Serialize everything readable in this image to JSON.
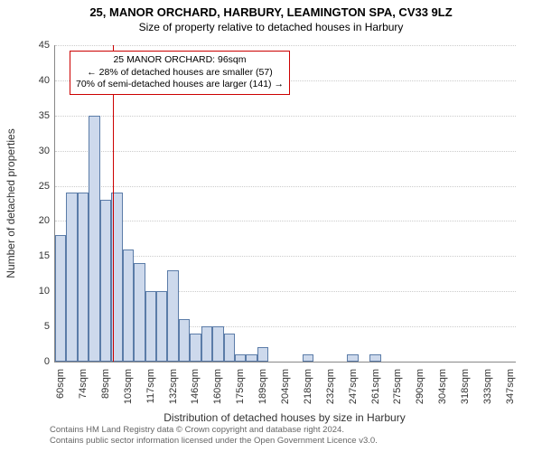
{
  "title_main": "25, MANOR ORCHARD, HARBURY, LEAMINGTON SPA, CV33 9LZ",
  "title_sub": "Size of property relative to detached houses in Harbury",
  "ylabel": "Number of detached properties",
  "xlabel": "Distribution of detached houses by size in Harbury",
  "ylim": [
    0,
    45
  ],
  "ytick_step": 5,
  "bar_fill": "#cdd9ec",
  "bar_border": "#5b7ca8",
  "grid_color": "#cccccc",
  "marker_color": "#cc0000",
  "marker_x_value": 96,
  "annotation": {
    "line1": "25 MANOR ORCHARD: 96sqm",
    "line2": "← 28% of detached houses are smaller (57)",
    "line3": "70% of semi-detached houses are larger (141) →"
  },
  "x_tick_labels": [
    "60sqm",
    "74sqm",
    "89sqm",
    "103sqm",
    "117sqm",
    "132sqm",
    "146sqm",
    "160sqm",
    "175sqm",
    "189sqm",
    "204sqm",
    "218sqm",
    "232sqm",
    "247sqm",
    "261sqm",
    "275sqm",
    "290sqm",
    "304sqm",
    "318sqm",
    "333sqm",
    "347sqm"
  ],
  "bar_values": [
    18,
    24,
    24,
    35,
    23,
    24,
    16,
    14,
    10,
    10,
    13,
    6,
    4,
    5,
    5,
    4,
    1,
    1,
    2,
    0,
    0,
    0,
    1,
    0,
    0,
    0,
    1,
    0,
    1,
    0,
    0,
    0,
    0,
    0,
    0,
    0,
    0,
    0,
    0,
    0,
    0
  ],
  "footer_line1": "Contains HM Land Registry data © Crown copyright and database right 2024.",
  "footer_line2": "Contains public sector information licensed under the Open Government Licence v3.0."
}
